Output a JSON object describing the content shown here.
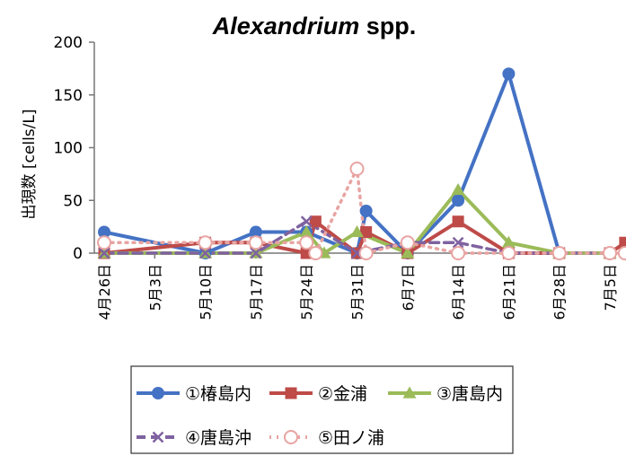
{
  "chart_data": {
    "type": "line",
    "title": "Alexandrium spp.",
    "title_italic_part": "Alexandrium",
    "title_normal_part": " spp.",
    "ylabel": "出現数 [cells/L]",
    "xlabel": "",
    "ylim": [
      0,
      200
    ],
    "yticks": [
      "0",
      "50",
      "100",
      "150",
      "200"
    ],
    "categories": [
      "4月26日",
      "5月3日",
      "5月10日",
      "5月17日",
      "5月24日",
      "5月31日",
      "6月7日",
      "6月14日",
      "6月21日",
      "6月28日",
      "7月5日"
    ],
    "grid": false,
    "legend_position": "bottom",
    "series": [
      {
        "name": "①椿島内",
        "color": "#4472C4",
        "marker": "circle",
        "line_style": "solid",
        "points": [
          [
            0,
            20
          ],
          [
            2,
            0
          ],
          [
            3,
            20
          ],
          [
            4,
            20
          ],
          [
            5,
            0
          ],
          [
            5.18,
            40
          ],
          [
            6,
            0
          ],
          [
            7,
            50
          ],
          [
            8,
            170
          ],
          [
            9,
            0
          ],
          [
            10,
            0
          ]
        ]
      },
      {
        "name": "②金浦",
        "color": "#BE4B48",
        "marker": "square",
        "line_style": "solid",
        "points": [
          [
            0,
            0
          ],
          [
            2,
            10
          ],
          [
            3,
            10
          ],
          [
            4,
            0
          ],
          [
            4.18,
            30
          ],
          [
            5,
            0
          ],
          [
            5.18,
            20
          ],
          [
            6,
            0
          ],
          [
            7,
            30
          ],
          [
            8,
            0
          ],
          [
            9,
            0
          ],
          [
            10,
            0
          ],
          [
            10.3,
            10
          ]
        ]
      },
      {
        "name": "③唐島内",
        "color": "#9BBB59",
        "marker": "triangle",
        "line_style": "solid",
        "points": [
          [
            0,
            0
          ],
          [
            2,
            0
          ],
          [
            3,
            0
          ],
          [
            4,
            20
          ],
          [
            4.35,
            0
          ],
          [
            5,
            20
          ],
          [
            6,
            0
          ],
          [
            7,
            60
          ],
          [
            8,
            10
          ],
          [
            9,
            0
          ],
          [
            10,
            0
          ]
        ]
      },
      {
        "name": "④唐島沖",
        "color": "#7F62A0",
        "marker": "x",
        "line_style": "dashed",
        "points": [
          [
            0,
            0
          ],
          [
            2,
            0
          ],
          [
            3,
            0
          ],
          [
            4,
            30
          ],
          [
            5,
            0
          ],
          [
            6,
            10
          ],
          [
            7,
            10
          ],
          [
            8,
            0
          ],
          [
            9,
            0
          ],
          [
            10,
            0
          ]
        ]
      },
      {
        "name": "⑤田ノ浦",
        "color": "#E8A4A2",
        "marker": "open-circle",
        "line_style": "dotted",
        "points": [
          [
            0,
            10
          ],
          [
            2,
            10
          ],
          [
            3,
            10
          ],
          [
            4,
            10
          ],
          [
            4.18,
            0
          ],
          [
            5,
            80
          ],
          [
            5.18,
            0
          ],
          [
            6,
            10
          ],
          [
            7,
            0
          ],
          [
            8,
            0
          ],
          [
            9,
            0
          ],
          [
            10,
            0
          ],
          [
            10.3,
            0
          ]
        ]
      }
    ]
  }
}
